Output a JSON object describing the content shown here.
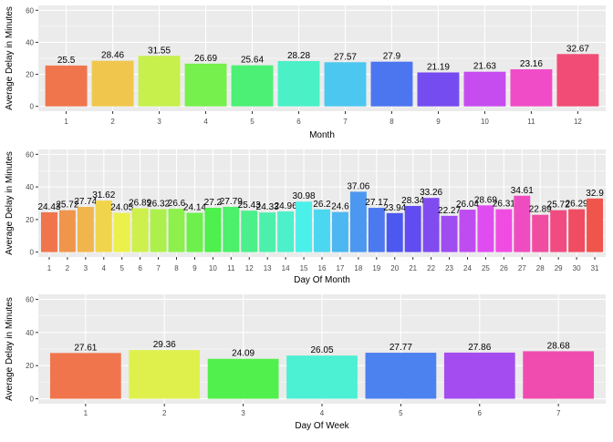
{
  "chart_data": [
    {
      "type": "bar",
      "xlabel": "Month",
      "ylabel": "Average Delay in Minutes",
      "ylim": [
        0,
        60
      ],
      "yticks": [
        0,
        20,
        40,
        60
      ],
      "grid": true,
      "legend": "none",
      "categories": [
        "1",
        "2",
        "3",
        "4",
        "5",
        "6",
        "7",
        "8",
        "9",
        "10",
        "11",
        "12"
      ],
      "values": [
        25.5,
        28.46,
        31.55,
        26.69,
        25.64,
        28.28,
        27.57,
        27.9,
        21.19,
        21.63,
        23.16,
        32.67
      ],
      "value_labels": [
        "25.5",
        "28.46",
        "31.55",
        "26.69",
        "25.64",
        "28.28",
        "27.57",
        "27.9",
        "21.19",
        "21.63",
        "23.16",
        "32.67"
      ]
    },
    {
      "type": "bar",
      "xlabel": "Day Of Month",
      "ylabel": "Average Delay in Minutes",
      "ylim": [
        0,
        60
      ],
      "yticks": [
        0,
        20,
        40,
        60
      ],
      "grid": true,
      "legend": "none",
      "categories": [
        "1",
        "2",
        "3",
        "4",
        "5",
        "6",
        "7",
        "8",
        "9",
        "10",
        "11",
        "12",
        "13",
        "14",
        "15",
        "16",
        "17",
        "18",
        "19",
        "20",
        "21",
        "22",
        "23",
        "24",
        "25",
        "26",
        "27",
        "28",
        "29",
        "30",
        "31"
      ],
      "values": [
        24.43,
        25.72,
        27.74,
        31.62,
        24.05,
        26.89,
        26.32,
        26.6,
        24.14,
        27.2,
        27.79,
        25.43,
        24.33,
        24.96,
        30.98,
        26.2,
        24.6,
        37.06,
        27.17,
        23.94,
        28.34,
        33.26,
        22.27,
        26.04,
        28.69,
        26.31,
        34.61,
        22.89,
        25.72,
        26.29,
        32.9
      ],
      "value_labels": [
        "24.43",
        "25.72",
        "27.74",
        "31.62",
        "24.05",
        "26.89",
        "26.32",
        "26.6",
        "24.14",
        "27.2",
        "27.79",
        "25.43",
        "24.33",
        "24.96",
        "30.98",
        "26.2",
        "24.6",
        "37.06",
        "27.17",
        "23.94",
        "28.34",
        "33.26",
        "22.27",
        "26.04",
        "28.69",
        "26.31",
        "34.61",
        "22.89",
        "25.72",
        "26.29",
        "32.9"
      ]
    },
    {
      "type": "bar",
      "xlabel": "Day Of Week",
      "ylabel": "Average Delay in Minutes",
      "ylim": [
        0,
        60
      ],
      "yticks": [
        0,
        20,
        40,
        60
      ],
      "grid": true,
      "legend": "none",
      "categories": [
        "1",
        "2",
        "3",
        "4",
        "5",
        "6",
        "7"
      ],
      "values": [
        27.61,
        29.36,
        24.09,
        26.05,
        27.77,
        27.86,
        28.68
      ],
      "value_labels": [
        "27.61",
        "29.36",
        "24.09",
        "26.05",
        "27.77",
        "27.86",
        "28.68"
      ]
    }
  ],
  "colors": {
    "panel_background": "#EBEBEB",
    "grid_major": "#FFFFFF",
    "tick_text": "#4D4D4D",
    "palette": "ggplot hue scale"
  }
}
